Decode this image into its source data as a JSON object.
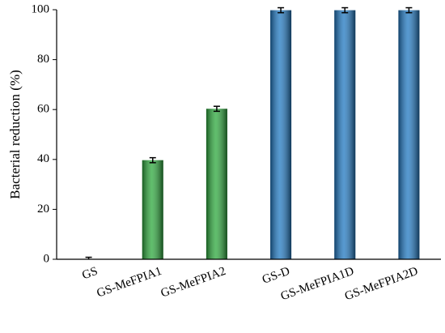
{
  "chart_data": {
    "type": "bar",
    "y_label": "Bacterial reduction (%)",
    "categories": [
      "GS",
      "GS-MeFPIA1",
      "GS-MeFPIA2",
      "GS-D",
      "GS-MeFPIA1D",
      "GS-MeFPIA2D"
    ],
    "values": [
      0,
      39.7,
      60.3,
      99.8,
      99.8,
      99.8
    ],
    "errors": [
      0.8,
      1,
      1,
      1,
      1,
      1
    ],
    "colors": [
      "#2ca83c",
      "#2ca83c",
      "#2ca83c",
      "#1f78c1",
      "#1f78c1",
      "#1f78c1"
    ],
    "ylim": [
      0,
      100
    ],
    "yticks": [
      0,
      20,
      40,
      60,
      80,
      100
    ]
  }
}
